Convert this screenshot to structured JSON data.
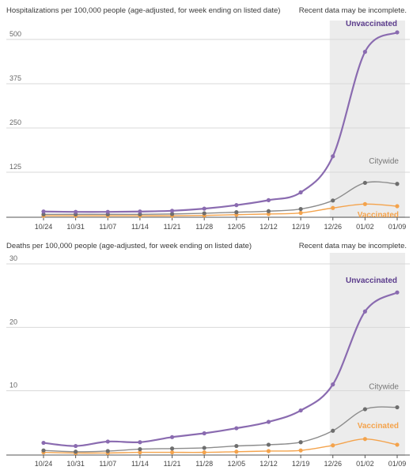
{
  "chart_data": [
    {
      "type": "line",
      "title": "Hospitalizations per 100,000 people (age-adjusted, for week ending on listed date)",
      "note": "Recent data may be incomplete.",
      "categories": [
        "10/24",
        "10/31",
        "11/07",
        "11/14",
        "11/21",
        "11/28",
        "12/05",
        "12/12",
        "12/19",
        "12/26",
        "01/02",
        "01/09"
      ],
      "yticks": [
        125,
        250,
        375,
        500
      ],
      "ylim": [
        0,
        540
      ],
      "grid": true,
      "shaded_from": "12/26",
      "series": [
        {
          "name": "Unvaccinated",
          "color": "#8a6bb0",
          "values": [
            14,
            13,
            13,
            14,
            16,
            22,
            32,
            46,
            68,
            170,
            465,
            520
          ]
        },
        {
          "name": "Citywide",
          "color": "#8c8c8c",
          "values": [
            6,
            6,
            6,
            6,
            7,
            9,
            12,
            15,
            21,
            45,
            95,
            92
          ]
        },
        {
          "name": "Vaccinated",
          "color": "#f4a34c",
          "values": [
            2,
            2,
            2,
            2,
            2,
            3,
            5,
            7,
            10,
            24,
            35,
            29
          ]
        }
      ]
    },
    {
      "type": "line",
      "title": "Deaths per 100,000 people (age-adjusted, for week ending on listed date)",
      "note": "Recent data may be incomplete.",
      "categories": [
        "10/24",
        "10/31",
        "11/07",
        "11/14",
        "11/21",
        "11/28",
        "12/05",
        "12/12",
        "12/19",
        "12/26",
        "01/02",
        "01/09"
      ],
      "yticks": [
        10,
        20,
        30
      ],
      "ylim": [
        0,
        31
      ],
      "grid": true,
      "shaded_from": "12/26",
      "series": [
        {
          "name": "Unvaccinated",
          "color": "#8a6bb0",
          "values": [
            1.8,
            1.3,
            2.0,
            1.9,
            2.7,
            3.3,
            4.1,
            5.1,
            6.9,
            11.0,
            22.5,
            25.5
          ]
        },
        {
          "name": "Citywide",
          "color": "#8c8c8c",
          "values": [
            0.6,
            0.4,
            0.5,
            0.8,
            0.9,
            1.0,
            1.3,
            1.5,
            1.9,
            3.7,
            7.1,
            7.4
          ]
        },
        {
          "name": "Vaccinated",
          "color": "#f4a34c",
          "values": [
            0.3,
            0.2,
            0.2,
            0.3,
            0.3,
            0.3,
            0.4,
            0.5,
            0.6,
            1.4,
            2.4,
            1.5
          ]
        }
      ]
    }
  ]
}
